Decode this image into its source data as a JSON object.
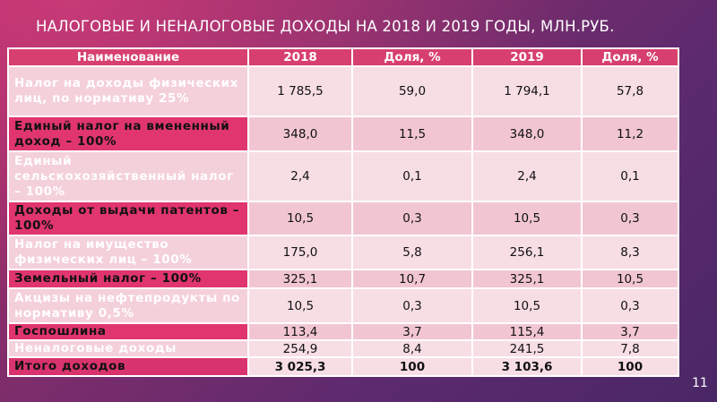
{
  "title": "НАЛОГОВЫЕ И НЕНАЛОГОВЫЕ ДОХОДЫ НА 2018 И 2019 ГОДЫ, МЛН.РУБ.",
  "table": {
    "headers": [
      "Наименование",
      "2018",
      "Доля, %",
      "2019",
      "Доля, %"
    ],
    "rows": [
      {
        "name": "Налог на доходы физических лиц, по нормативу 25%",
        "v2018": "1 785,5",
        "s2018": "59,0",
        "v2019": "1 794,1",
        "s2019": "57,8"
      },
      {
        "name": "Единый налог на вмененный доход – 100%",
        "v2018": "348,0",
        "s2018": "11,5",
        "v2019": "348,0",
        "s2019": "11,2"
      },
      {
        "name": "Единый сельскохозяйственный налог – 100%",
        "v2018": "2,4",
        "s2018": "0,1",
        "v2019": "2,4",
        "s2019": "0,1"
      },
      {
        "name": "Доходы от выдачи патентов – 100%",
        "v2018": "10,5",
        "s2018": "0,3",
        "v2019": "10,5",
        "s2019": "0,3"
      },
      {
        "name": "Налог на имущество физических лиц – 100%",
        "v2018": "175,0",
        "s2018": "5,8",
        "v2019": "256,1",
        "s2019": "8,3"
      },
      {
        "name": "Земельный налог – 100%",
        "v2018": "325,1",
        "s2018": "10,7",
        "v2019": "325,1",
        "s2019": "10,5"
      },
      {
        "name": "Акцизы на нефтепродукты по нормативу 0,5%",
        "v2018": "10,5",
        "s2018": "0,3",
        "v2019": "10,5",
        "s2019": "0,3"
      },
      {
        "name": "Госпошлина",
        "v2018": "113,4",
        "s2018": "3,7",
        "v2019": "115,4",
        "s2019": "3,7"
      },
      {
        "name": "Неналоговые доходы",
        "v2018": "254,9",
        "s2018": "8,4",
        "v2019": "241,5",
        "s2019": "7,8"
      },
      {
        "name": "Итого доходов",
        "v2018": "3 025,3",
        "s2018": "100",
        "v2019": "3 103,6",
        "s2019": "100"
      }
    ]
  },
  "page_number": "11"
}
